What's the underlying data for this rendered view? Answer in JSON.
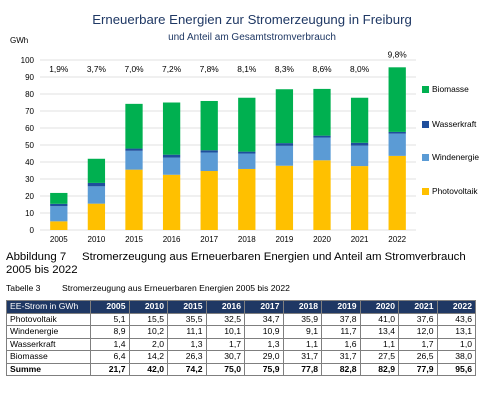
{
  "chart_data": {
    "type": "bar",
    "stacked": true,
    "title": "Erneuerbare Energien zur Stromerzeugung in Freiburg",
    "subtitle": "und Anteil am Gesamtstromverbrauch",
    "ylabel": "GWh",
    "ylim": [
      0,
      100
    ],
    "yticks": [
      0,
      10,
      20,
      30,
      40,
      50,
      60,
      70,
      80,
      90,
      100
    ],
    "grid": true,
    "legend_position": "right",
    "categories": [
      "2005",
      "2010",
      "2015",
      "2016",
      "2017",
      "2018",
      "2019",
      "2020",
      "2021",
      "2022"
    ],
    "shares": [
      "1,9%",
      "3,7%",
      "7,0%",
      "7,2%",
      "7,8%",
      "8,1%",
      "8,3%",
      "8,6%",
      "8,0%",
      "9,8%"
    ],
    "series": [
      {
        "name": "Photovoltaik",
        "color": "#ffc000",
        "values": [
          5.1,
          15.5,
          35.5,
          32.5,
          34.7,
          35.9,
          37.8,
          41.0,
          37.6,
          43.6
        ]
      },
      {
        "name": "Windenergie",
        "color": "#5b9bd5",
        "values": [
          8.9,
          10.2,
          11.1,
          10.1,
          10.9,
          9.1,
          11.7,
          13.4,
          12.0,
          13.1
        ]
      },
      {
        "name": "Wasserkraft",
        "color": "#1f4e9c",
        "values": [
          1.4,
          2.0,
          1.3,
          1.7,
          1.3,
          1.1,
          1.6,
          1.1,
          1.7,
          1.0
        ]
      },
      {
        "name": "Biomasse",
        "color": "#00b050",
        "values": [
          6.4,
          14.2,
          26.3,
          30.7,
          29.0,
          31.7,
          31.7,
          27.5,
          26.5,
          38.0
        ]
      }
    ],
    "legend_order": [
      "Biomasse",
      "Wasserkraft",
      "Windenergie",
      "Photovoltaik"
    ]
  },
  "figure_caption": {
    "number": "Abbildung 7",
    "text": "Stromerzeugung aus Erneuerbaren Energien und Anteil am Stromverbrauch 2005 bis 2022"
  },
  "table_caption": {
    "number": "Tabelle 3",
    "text": "Stromerzeugung aus Erneuerbaren Energien 2005 bis 2022"
  },
  "table": {
    "header": [
      "EE-Strom in GWh",
      "2005",
      "2010",
      "2015",
      "2016",
      "2017",
      "2018",
      "2019",
      "2020",
      "2021",
      "2022"
    ],
    "rows": [
      [
        "Photovoltaik",
        "5,1",
        "15,5",
        "35,5",
        "32,5",
        "34,7",
        "35,9",
        "37,8",
        "41,0",
        "37,6",
        "43,6"
      ],
      [
        "Windenergie",
        "8,9",
        "10,2",
        "11,1",
        "10,1",
        "10,9",
        "9,1",
        "11,7",
        "13,4",
        "12,0",
        "13,1"
      ],
      [
        "Wasserkraft",
        "1,4",
        "2,0",
        "1,3",
        "1,7",
        "1,3",
        "1,1",
        "1,6",
        "1,1",
        "1,7",
        "1,0"
      ],
      [
        "Biomasse",
        "6,4",
        "14,2",
        "26,3",
        "30,7",
        "29,0",
        "31,7",
        "31,7",
        "27,5",
        "26,5",
        "38,0"
      ]
    ],
    "sum": [
      "Summe",
      "21,7",
      "42,0",
      "74,2",
      "75,0",
      "75,9",
      "77,8",
      "82,8",
      "82,9",
      "77,9",
      "95,6"
    ]
  }
}
